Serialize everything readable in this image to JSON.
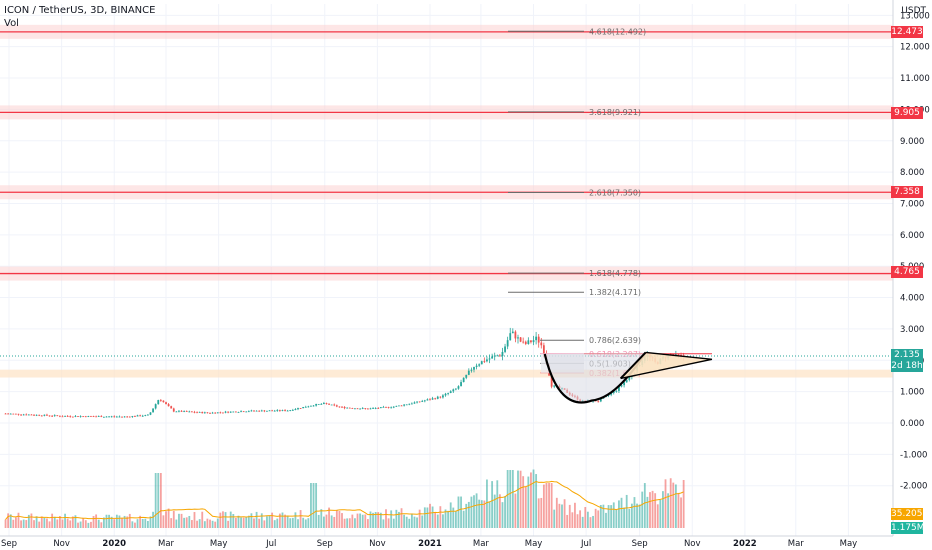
{
  "header": {
    "title": "ICON / TetherUS, 3D, BINANCE",
    "vol_label": "Vol",
    "unit": "USDT"
  },
  "axis": {
    "y_ticks": [
      "13.000",
      "12.000",
      "11.000",
      "10.000",
      "9.000",
      "8.000",
      "7.000",
      "6.000",
      "5.000",
      "4.000",
      "3.000",
      "2.000",
      "1.000",
      "0.000",
      "-1.000",
      "-2.000"
    ],
    "x_ticks": [
      "Sep",
      "Nov",
      "2020",
      "Mar",
      "May",
      "Jul",
      "Sep",
      "Nov",
      "2021",
      "Mar",
      "May",
      "Jul",
      "Sep",
      "Nov",
      "2022",
      "Mar",
      "May"
    ]
  },
  "price_tags": {
    "p12473": "12.473",
    "p9905": "9.905",
    "p7358": "7.358",
    "p4765": "4.765",
    "current": "2.135",
    "countdown": "2d 18h",
    "vol_ma": "35.205M",
    "vol_cur": "1.175M"
  },
  "fib_labels": [
    {
      "text": "4.618(12.492)",
      "value": 12.492,
      "color": "#6b6b6b"
    },
    {
      "text": "3.618(9.921)",
      "value": 9.921,
      "color": "#6b6b6b"
    },
    {
      "text": "2.618(7.350)",
      "value": 7.35,
      "color": "#6b6b6b"
    },
    {
      "text": "1.618(4.778)",
      "value": 4.778,
      "color": "#6b6b6b"
    },
    {
      "text": "1.382(4.171)",
      "value": 4.171,
      "color": "#6b6b6b"
    },
    {
      "text": "0.786(2.639)",
      "value": 2.639,
      "color": "#6b6b6b"
    },
    {
      "text": "0.618(2.207)",
      "value": 2.207,
      "color": "#f48fb1"
    },
    {
      "text": "0.5(1.903)",
      "value": 1.903,
      "color": "#888888"
    },
    {
      "text": "0.382(1.600)",
      "value": 1.6,
      "color": "#f7a1a1"
    }
  ],
  "colors": {
    "up": "#26a69a",
    "down": "#ef5350",
    "level": "#f23645",
    "zone": "#fbd2d2",
    "triangle": "#fbe2c0"
  },
  "chart_data": {
    "type": "candlestick",
    "ylim": [
      -3.4,
      13.7
    ],
    "x_range": [
      "2019-09-01",
      "2022-05-31"
    ],
    "horizontal_levels": [
      12.473,
      9.905,
      7.358,
      4.765
    ],
    "price_path": [
      [
        "2019-08-28",
        0.3
      ],
      [
        "2019-11-01",
        0.22
      ],
      [
        "2020-01-15",
        0.2
      ],
      [
        "2020-02-10",
        0.25
      ],
      [
        "2020-02-22",
        0.78
      ],
      [
        "2020-03-10",
        0.38
      ],
      [
        "2020-04-20",
        0.32
      ],
      [
        "2020-06-01",
        0.38
      ],
      [
        "2020-07-20",
        0.4
      ],
      [
        "2020-08-20",
        0.58
      ],
      [
        "2020-09-01",
        0.62
      ],
      [
        "2020-09-20",
        0.5
      ],
      [
        "2020-10-20",
        0.45
      ],
      [
        "2020-11-20",
        0.52
      ],
      [
        "2020-12-20",
        0.68
      ],
      [
        "2021-01-15",
        0.85
      ],
      [
        "2021-02-01",
        1.1
      ],
      [
        "2021-02-20",
        1.8
      ],
      [
        "2021-03-05",
        2.0
      ],
      [
        "2021-03-25",
        2.2
      ],
      [
        "2021-04-05",
        2.9
      ],
      [
        "2021-04-20",
        2.5
      ],
      [
        "2021-05-05",
        2.7
      ],
      [
        "2021-05-12",
        2.4
      ],
      [
        "2021-05-22",
        1.2
      ],
      [
        "2021-06-05",
        1.05
      ],
      [
        "2021-06-25",
        0.7
      ],
      [
        "2021-07-15",
        0.7
      ],
      [
        "2021-08-05",
        1.05
      ],
      [
        "2021-08-25",
        1.6
      ],
      [
        "2021-09-08",
        2.2
      ],
      [
        "2021-09-20",
        1.9
      ],
      [
        "2021-10-05",
        2.2
      ],
      [
        "2021-10-20",
        2.1
      ]
    ]
  }
}
